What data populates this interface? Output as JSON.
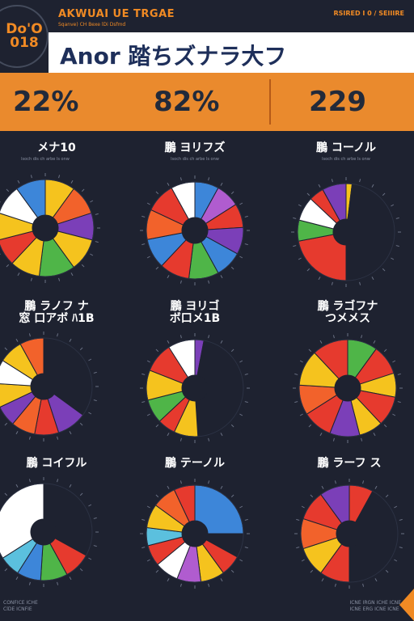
{
  "badge": {
    "line1": "Do'O",
    "line2": "018"
  },
  "top_bar": {
    "title": "AKWUAI UE TRGAE",
    "subtitle": "Sqanve) CH Bexe lDi Dsfmd",
    "right": "RSIRED I 0 / SEIIIRE"
  },
  "header": {
    "title": "Anor 踏ちズナラ大フ"
  },
  "stats": [
    {
      "value": "22%"
    },
    {
      "value": "82%"
    },
    {
      "value": "229"
    }
  ],
  "footer": {
    "left_line1": "CONFICE ICHE",
    "left_line2": "ClDE ICNFIE",
    "right_line1": "ICNE IRGN ICHE ICNE",
    "right_line2": "ICNE ERG ICNE ICNE"
  },
  "chart_data": [
    {
      "type": "pie",
      "title": "メナ10",
      "subtitle": "lsoch dis ch arbe ls onw",
      "slices": [
        {
          "value": 10,
          "color": "#f5c31e"
        },
        {
          "value": 10,
          "color": "#f2622b"
        },
        {
          "value": 9,
          "color": "#7b3fb8"
        },
        {
          "value": 11,
          "color": "#f5c31e"
        },
        {
          "value": 12,
          "color": "#4fb548"
        },
        {
          "value": 10,
          "color": "#f5c31e"
        },
        {
          "value": 9,
          "color": "#e63a2e"
        },
        {
          "value": 9,
          "color": "#f5c31e"
        },
        {
          "value": 10,
          "color": "#ffffff"
        },
        {
          "value": 10,
          "color": "#3d86d9"
        }
      ]
    },
    {
      "type": "pie",
      "title": "鵬 ヨリフズ",
      "subtitle": "lsoch dis ch arbe ls onw",
      "slices": [
        {
          "value": 8,
          "color": "#3d86d9"
        },
        {
          "value": 8,
          "color": "#b05ccf"
        },
        {
          "value": 8,
          "color": "#e63a2e"
        },
        {
          "value": 9,
          "color": "#7b3fb8"
        },
        {
          "value": 9,
          "color": "#3d86d9"
        },
        {
          "value": 10,
          "color": "#4fb548"
        },
        {
          "value": 10,
          "color": "#e63a2e"
        },
        {
          "value": 10,
          "color": "#3d86d9"
        },
        {
          "value": 10,
          "color": "#f2622b"
        },
        {
          "value": 10,
          "color": "#e63a2e"
        },
        {
          "value": 8,
          "color": "#ffffff"
        }
      ]
    },
    {
      "type": "pie",
      "title": "鵬 コーノル",
      "subtitle": "lsoch dis ch arbe ls onw",
      "slices": [
        {
          "value": 2,
          "color": "#f5c31e"
        },
        {
          "value": 48,
          "color": "#1e2230"
        },
        {
          "value": 22,
          "color": "#e63a2e"
        },
        {
          "value": 7,
          "color": "#4fb548"
        },
        {
          "value": 8,
          "color": "#ffffff"
        },
        {
          "value": 5,
          "color": "#e63a2e"
        },
        {
          "value": 8,
          "color": "#7b3fb8"
        }
      ]
    },
    {
      "type": "pie",
      "title": "鵬 ラノフ ナ\n窓 口アボ ﾊ1B",
      "subtitle": "",
      "slices": [
        {
          "value": 35,
          "color": "#1e2230"
        },
        {
          "value": 10,
          "color": "#7b3fb8"
        },
        {
          "value": 8,
          "color": "#e63a2e"
        },
        {
          "value": 8,
          "color": "#f2622b"
        },
        {
          "value": 7,
          "color": "#7b3fb8"
        },
        {
          "value": 8,
          "color": "#f5c31e"
        },
        {
          "value": 8,
          "color": "#ffffff"
        },
        {
          "value": 8,
          "color": "#f5c31e"
        },
        {
          "value": 8,
          "color": "#f2622b"
        }
      ]
    },
    {
      "type": "pie",
      "title": "鵬 ヨリゴ\nボ口メ1B",
      "subtitle": "",
      "slices": [
        {
          "value": 3,
          "color": "#7b3fb8"
        },
        {
          "value": 46,
          "color": "#1e2230"
        },
        {
          "value": 8,
          "color": "#f5c31e"
        },
        {
          "value": 6,
          "color": "#e63a2e"
        },
        {
          "value": 8,
          "color": "#4fb548"
        },
        {
          "value": 10,
          "color": "#f5c31e"
        },
        {
          "value": 10,
          "color": "#e63a2e"
        },
        {
          "value": 9,
          "color": "#ffffff"
        }
      ]
    },
    {
      "type": "pie",
      "title": "鵬 ラゴフナ\nつメメス",
      "subtitle": "",
      "slices": [
        {
          "value": 10,
          "color": "#4fb548"
        },
        {
          "value": 10,
          "color": "#e63a2e"
        },
        {
          "value": 8,
          "color": "#f5c31e"
        },
        {
          "value": 10,
          "color": "#e63a2e"
        },
        {
          "value": 8,
          "color": "#f5c31e"
        },
        {
          "value": 10,
          "color": "#7b3fb8"
        },
        {
          "value": 10,
          "color": "#e63a2e"
        },
        {
          "value": 10,
          "color": "#f2622b"
        },
        {
          "value": 12,
          "color": "#f5c31e"
        },
        {
          "value": 12,
          "color": "#e63a2e"
        }
      ]
    },
    {
      "type": "pie",
      "title": "鵬 コイフル",
      "subtitle": "",
      "slices": [
        {
          "value": 33,
          "color": "#1e2230"
        },
        {
          "value": 9,
          "color": "#e63a2e"
        },
        {
          "value": 9,
          "color": "#4fb548"
        },
        {
          "value": 8,
          "color": "#3d86d9"
        },
        {
          "value": 7,
          "color": "#5bc0de"
        },
        {
          "value": 34,
          "color": "#ffffff"
        }
      ]
    },
    {
      "type": "pie",
      "title": "鵬 テーノル",
      "subtitle": "",
      "slices": [
        {
          "value": 25,
          "color": "#3d86d9"
        },
        {
          "value": 8,
          "color": "#1e2230"
        },
        {
          "value": 7,
          "color": "#e63a2e"
        },
        {
          "value": 8,
          "color": "#f5c31e"
        },
        {
          "value": 8,
          "color": "#b05ccf"
        },
        {
          "value": 8,
          "color": "#ffffff"
        },
        {
          "value": 7,
          "color": "#e63a2e"
        },
        {
          "value": 6,
          "color": "#5bc0de"
        },
        {
          "value": 8,
          "color": "#f5c31e"
        },
        {
          "value": 8,
          "color": "#f2622b"
        },
        {
          "value": 7,
          "color": "#e63a2e"
        }
      ]
    },
    {
      "type": "pie",
      "title": "鵬 ラーフ ス",
      "subtitle": "",
      "slices": [
        {
          "value": 8,
          "color": "#e63a2e"
        },
        {
          "value": 42,
          "color": "#1e2230"
        },
        {
          "value": 10,
          "color": "#e63a2e"
        },
        {
          "value": 10,
          "color": "#f5c31e"
        },
        {
          "value": 10,
          "color": "#f2622b"
        },
        {
          "value": 10,
          "color": "#e63a2e"
        },
        {
          "value": 10,
          "color": "#7b3fb8"
        }
      ]
    }
  ]
}
